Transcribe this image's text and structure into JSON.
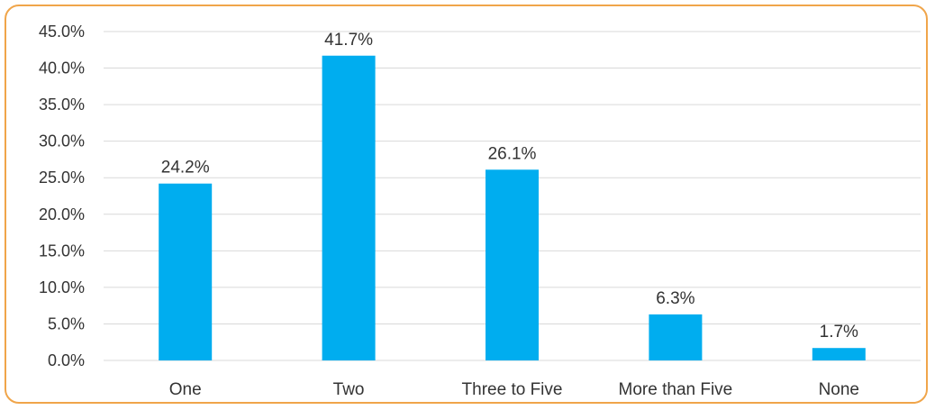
{
  "chart_data": {
    "type": "bar",
    "categories": [
      "One",
      "Two",
      "Three to Five",
      "More than Five",
      "None"
    ],
    "values": [
      24.2,
      41.7,
      26.1,
      6.3,
      1.7
    ],
    "data_labels": [
      "24.2%",
      "41.7%",
      "26.1%",
      "6.3%",
      "1.7%"
    ],
    "y_ticks": [
      "0.0%",
      "5.0%",
      "10.0%",
      "15.0%",
      "20.0%",
      "25.0%",
      "30.0%",
      "35.0%",
      "40.0%",
      "45.0%"
    ],
    "ylim": [
      0,
      45
    ],
    "title": "",
    "xlabel": "",
    "ylabel": "",
    "grid": true,
    "legend": "none",
    "bar_color": "#00adef",
    "border_color": "#f0a54a",
    "grid_color": "#d9d9d9"
  }
}
